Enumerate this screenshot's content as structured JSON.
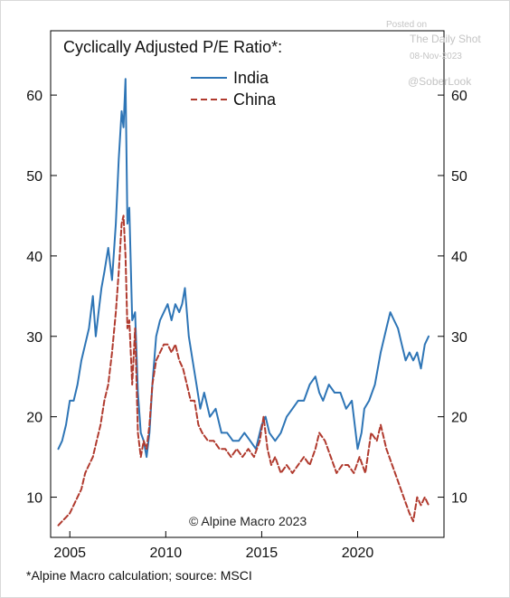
{
  "watermark": {
    "posted_on": "Posted on",
    "site": "The Daily Shot",
    "date": "08-Nov-2023",
    "handle": "@SoberLook"
  },
  "chart_data": {
    "type": "line",
    "title": "Cyclically Adjusted P/E Ratio*:",
    "credit": "© Alpine Macro 2023",
    "footnote": "*Alpine Macro calculation; source: MSCI",
    "xlim": [
      2004.0,
      2024.5
    ],
    "ylim": [
      5,
      68
    ],
    "x_ticks": [
      2005,
      2010,
      2015,
      2020
    ],
    "x_tick_labels": [
      "2005",
      "2010",
      "2015",
      "2020"
    ],
    "y_ticks": [
      10,
      20,
      30,
      40,
      50,
      60
    ],
    "y_tick_labels": [
      "10",
      "20",
      "30",
      "40",
      "50",
      "60"
    ],
    "legend_position": "top-center",
    "grid": false,
    "series": [
      {
        "name": "India",
        "color": "#2e75b6",
        "dash": "solid",
        "x": [
          2004.4,
          2004.6,
          2004.8,
          2005.0,
          2005.2,
          2005.4,
          2005.6,
          2005.8,
          2006.0,
          2006.2,
          2006.35,
          2006.5,
          2006.65,
          2006.8,
          2007.0,
          2007.2,
          2007.4,
          2007.55,
          2007.7,
          2007.8,
          2007.9,
          2008.0,
          2008.1,
          2008.25,
          2008.4,
          2008.55,
          2008.7,
          2008.85,
          2009.0,
          2009.15,
          2009.3,
          2009.5,
          2009.7,
          2009.9,
          2010.1,
          2010.3,
          2010.5,
          2010.7,
          2010.85,
          2011.0,
          2011.2,
          2011.4,
          2011.6,
          2011.8,
          2012.0,
          2012.3,
          2012.6,
          2012.9,
          2013.2,
          2013.5,
          2013.8,
          2014.1,
          2014.4,
          2014.7,
          2015.0,
          2015.2,
          2015.4,
          2015.7,
          2016.0,
          2016.3,
          2016.6,
          2016.9,
          2017.2,
          2017.5,
          2017.8,
          2018.0,
          2018.2,
          2018.5,
          2018.8,
          2019.1,
          2019.4,
          2019.7,
          2020.0,
          2020.2,
          2020.35,
          2020.6,
          2020.9,
          2021.2,
          2021.5,
          2021.7,
          2021.9,
          2022.1,
          2022.3,
          2022.5,
          2022.7,
          2022.9,
          2023.1,
          2023.3,
          2023.5,
          2023.7
        ],
        "y": [
          16,
          17,
          19,
          22,
          22,
          24,
          27,
          29,
          31,
          35,
          30,
          33,
          36,
          38,
          41,
          37,
          44,
          52,
          58,
          56,
          62,
          44,
          46,
          32,
          33,
          23,
          18,
          17,
          15,
          18,
          24,
          30,
          32,
          33,
          34,
          32,
          34,
          33,
          34,
          36,
          30,
          27,
          24,
          21,
          23,
          20,
          21,
          18,
          18,
          17,
          17,
          18,
          17,
          16,
          19,
          20,
          18,
          17,
          18,
          20,
          21,
          22,
          22,
          24,
          25,
          23,
          22,
          24,
          23,
          23,
          21,
          22,
          16,
          18,
          21,
          22,
          24,
          28,
          31,
          33,
          32,
          31,
          29,
          27,
          28,
          27,
          28,
          26,
          29,
          30
        ]
      },
      {
        "name": "China",
        "color": "#b03a2e",
        "dash": "dashed",
        "x": [
          2004.4,
          2004.6,
          2004.8,
          2005.0,
          2005.2,
          2005.4,
          2005.6,
          2005.8,
          2006.0,
          2006.2,
          2006.4,
          2006.6,
          2006.8,
          2007.0,
          2007.2,
          2007.4,
          2007.55,
          2007.7,
          2007.8,
          2007.9,
          2008.0,
          2008.1,
          2008.25,
          2008.4,
          2008.55,
          2008.7,
          2008.85,
          2009.0,
          2009.15,
          2009.3,
          2009.5,
          2009.7,
          2009.9,
          2010.1,
          2010.3,
          2010.5,
          2010.7,
          2010.9,
          2011.1,
          2011.3,
          2011.5,
          2011.7,
          2011.9,
          2012.2,
          2012.5,
          2012.8,
          2013.1,
          2013.4,
          2013.7,
          2014.0,
          2014.3,
          2014.6,
          2014.9,
          2015.1,
          2015.3,
          2015.5,
          2015.7,
          2016.0,
          2016.3,
          2016.6,
          2016.9,
          2017.2,
          2017.5,
          2017.8,
          2018.0,
          2018.3,
          2018.6,
          2018.9,
          2019.2,
          2019.5,
          2019.8,
          2020.1,
          2020.4,
          2020.7,
          2021.0,
          2021.2,
          2021.5,
          2021.8,
          2022.1,
          2022.4,
          2022.7,
          2022.9,
          2023.1,
          2023.3,
          2023.5,
          2023.7
        ],
        "y": [
          6.5,
          7,
          7.5,
          8,
          9,
          10,
          11,
          13,
          14,
          15,
          17,
          19,
          22,
          24,
          28,
          33,
          38,
          44,
          45,
          40,
          31,
          32,
          24,
          31,
          18,
          15,
          17,
          16,
          19,
          24,
          27,
          28,
          29,
          29,
          28,
          29,
          27,
          26,
          24,
          22,
          22,
          19,
          18,
          17,
          17,
          16,
          16,
          15,
          16,
          15,
          16,
          15,
          17,
          20,
          16,
          14,
          15,
          13,
          14,
          13,
          14,
          15,
          14,
          16,
          18,
          17,
          15,
          13,
          14,
          14,
          13,
          15,
          13,
          18,
          17,
          19,
          16,
          14,
          12,
          10,
          8,
          7,
          10,
          9,
          10,
          9
        ]
      }
    ]
  }
}
